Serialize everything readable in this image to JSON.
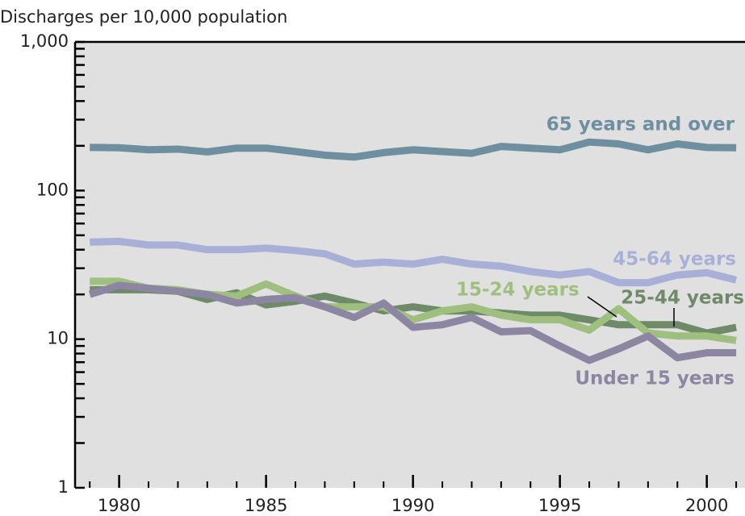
{
  "chart_data": {
    "type": "line",
    "y_label": "Discharges per 10,000 population",
    "x": [
      1979,
      1980,
      1981,
      1982,
      1983,
      1984,
      1985,
      1986,
      1987,
      1988,
      1989,
      1990,
      1991,
      1992,
      1993,
      1994,
      1995,
      1996,
      1997,
      1998,
      1999,
      2000,
      2001
    ],
    "xlim": [
      1978.5,
      2001.3
    ],
    "xticks": [
      1980,
      1985,
      1990,
      1995,
      2000
    ],
    "ylim": [
      1,
      1000
    ],
    "yticks": [
      1,
      10,
      100,
      {
        "value": 1000,
        "label": "1,000"
      }
    ],
    "log_scale_y": true,
    "series": [
      {
        "name": "65 years and over",
        "color": "#6e8fa0",
        "values": [
          195,
          194,
          188,
          190,
          182,
          193,
          193,
          183,
          173,
          168,
          180,
          188,
          183,
          178,
          198,
          193,
          188,
          212,
          206,
          188,
          206,
          195,
          194
        ]
      },
      {
        "name": "45-64 years",
        "color": "#a9b0d8",
        "values": [
          45,
          45.5,
          43,
          43,
          40,
          40,
          41,
          39.5,
          37.5,
          32,
          33,
          32,
          34.5,
          32,
          31,
          28.5,
          27,
          28.5,
          24,
          24,
          27,
          28,
          25
        ]
      },
      {
        "name": "25-44 years",
        "color": "#6f8a69",
        "values": [
          21.5,
          21.5,
          21.5,
          21,
          18.5,
          20.5,
          17,
          18,
          19.5,
          17.5,
          15.5,
          16.5,
          15.5,
          15.5,
          15,
          14.5,
          14.5,
          13.5,
          12.5,
          12.5,
          12.5,
          11,
          12
        ]
      },
      {
        "name": "15-24 years",
        "color": "#9fbf7f",
        "values": [
          24.5,
          24.5,
          22,
          21.5,
          20,
          19.5,
          23.5,
          19.5,
          16.5,
          16.5,
          16.5,
          13.5,
          15.5,
          16.5,
          14.5,
          13.5,
          13.5,
          11.5,
          16,
          11,
          10.5,
          10.5,
          9.8
        ]
      },
      {
        "name": "Under 15 years",
        "color": "#8c86a3",
        "values": [
          20,
          23,
          22,
          21,
          20,
          17.5,
          18.5,
          19,
          16.5,
          14,
          17.5,
          12,
          12.5,
          14,
          11.2,
          11.4,
          9,
          7.2,
          8.6,
          10.5,
          7.5,
          8.1,
          8.1
        ]
      }
    ]
  }
}
